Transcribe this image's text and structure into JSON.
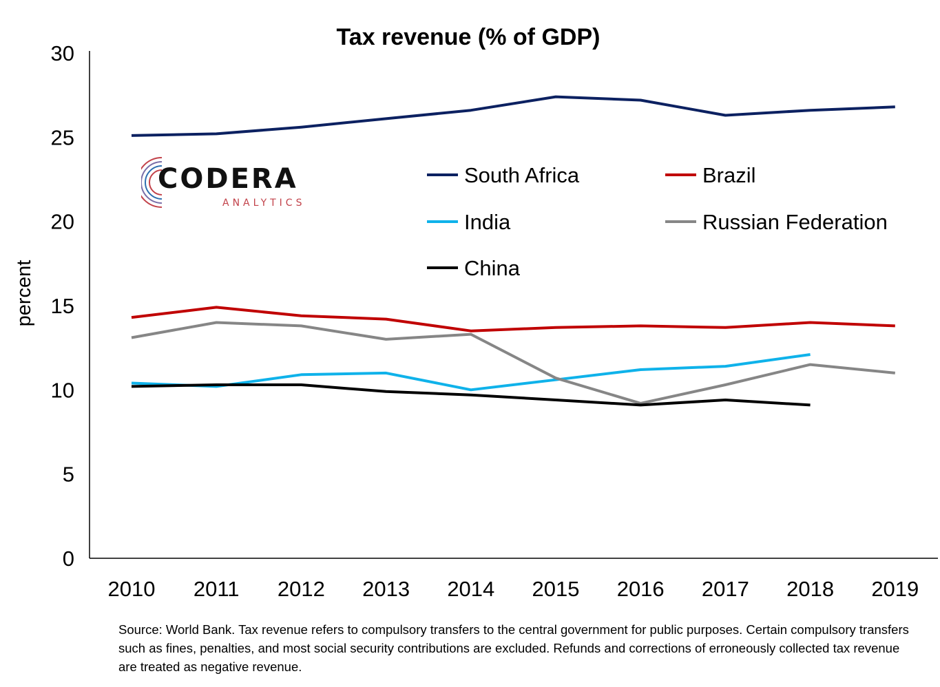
{
  "chart_data": {
    "type": "line",
    "title": "Tax revenue (% of GDP)",
    "xlabel": "",
    "ylabel": "percent",
    "x": [
      "2010",
      "2011",
      "2012",
      "2013",
      "2014",
      "2015",
      "2016",
      "2017",
      "2018",
      "2019"
    ],
    "ylim": [
      0,
      30
    ],
    "yticks": [
      "0",
      "5",
      "10",
      "15",
      "20",
      "25",
      "30"
    ],
    "grid": false,
    "legend_position": "top-right",
    "series": [
      {
        "name": "South Africa",
        "color": "#0c2161",
        "values": [
          25.1,
          25.2,
          25.6,
          26.1,
          26.6,
          27.4,
          27.2,
          26.3,
          26.6,
          26.8
        ]
      },
      {
        "name": "Brazil",
        "color": "#c00000",
        "values": [
          14.3,
          14.9,
          14.4,
          14.2,
          13.5,
          13.7,
          13.8,
          13.7,
          14.0,
          13.8
        ]
      },
      {
        "name": "India",
        "color": "#0fb2ea",
        "values": [
          10.4,
          10.2,
          10.9,
          11.0,
          10.0,
          10.6,
          11.2,
          11.4,
          12.1,
          null
        ]
      },
      {
        "name": "Russian Federation",
        "color": "#868686",
        "values": [
          13.1,
          14.0,
          13.8,
          13.0,
          13.3,
          10.7,
          9.2,
          10.3,
          11.5,
          11.0
        ]
      },
      {
        "name": "China",
        "color": "#000000",
        "values": [
          10.2,
          10.3,
          10.3,
          9.9,
          9.7,
          9.4,
          9.1,
          9.4,
          9.1,
          null
        ]
      }
    ],
    "source_note": "Source: World Bank. Tax revenue refers to compulsory transfers to the central government for public purposes. Certain compulsory transfers such as fines, penalties, and most social security contributions are excluded. Refunds and corrections of erroneously collected tax revenue are treated as negative revenue."
  },
  "logo": {
    "main": "CODERA",
    "sub": "ANALYTICS"
  }
}
